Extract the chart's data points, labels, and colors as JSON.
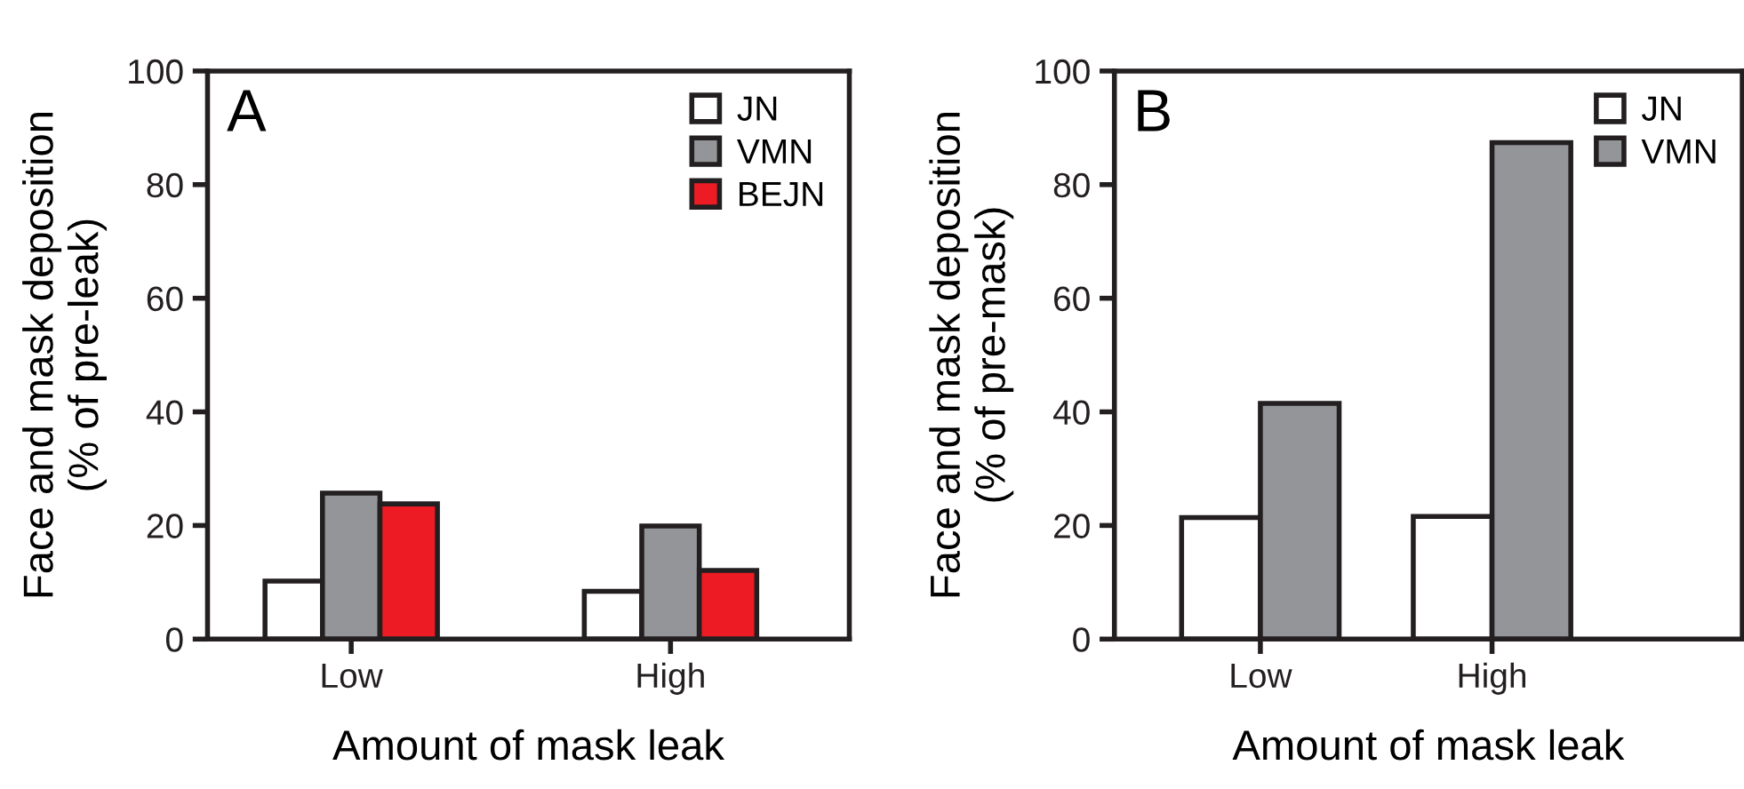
{
  "chart_data": [
    {
      "type": "bar",
      "categories": [
        "Low",
        "High"
      ],
      "xlabel": "Amount of mask leak",
      "ylabel": "Face and mask deposition\n(% of pre-leak)",
      "ylim": [
        0,
        100
      ],
      "yticks": [
        0,
        20,
        40,
        60,
        80,
        100
      ],
      "grid": false,
      "legend": "top right",
      "annotations": [
        "A"
      ],
      "series": [
        {
          "name": "JN",
          "color": "#ffffff",
          "values": [
            10.2,
            8.4
          ]
        },
        {
          "name": "VMN",
          "color": "#939598",
          "values": [
            25.7,
            19.9
          ]
        },
        {
          "name": "BEJN",
          "color": "#ed1c24",
          "values": [
            23.8,
            12.1
          ]
        }
      ]
    },
    {
      "type": "bar",
      "categories": [
        "Low",
        "High"
      ],
      "xlabel": "Amount of mask leak",
      "ylabel": "Face and mask deposition\n(% of pre-mask)",
      "ylim": [
        0,
        100
      ],
      "yticks": [
        0,
        20,
        40,
        60,
        80,
        100
      ],
      "grid": false,
      "legend": "top right",
      "annotations": [
        "B"
      ],
      "series": [
        {
          "name": "JN",
          "color": "#ffffff",
          "values": [
            21.4,
            21.6
          ]
        },
        {
          "name": "VMN",
          "color": "#939598",
          "values": [
            41.5,
            87.4
          ]
        }
      ]
    }
  ]
}
